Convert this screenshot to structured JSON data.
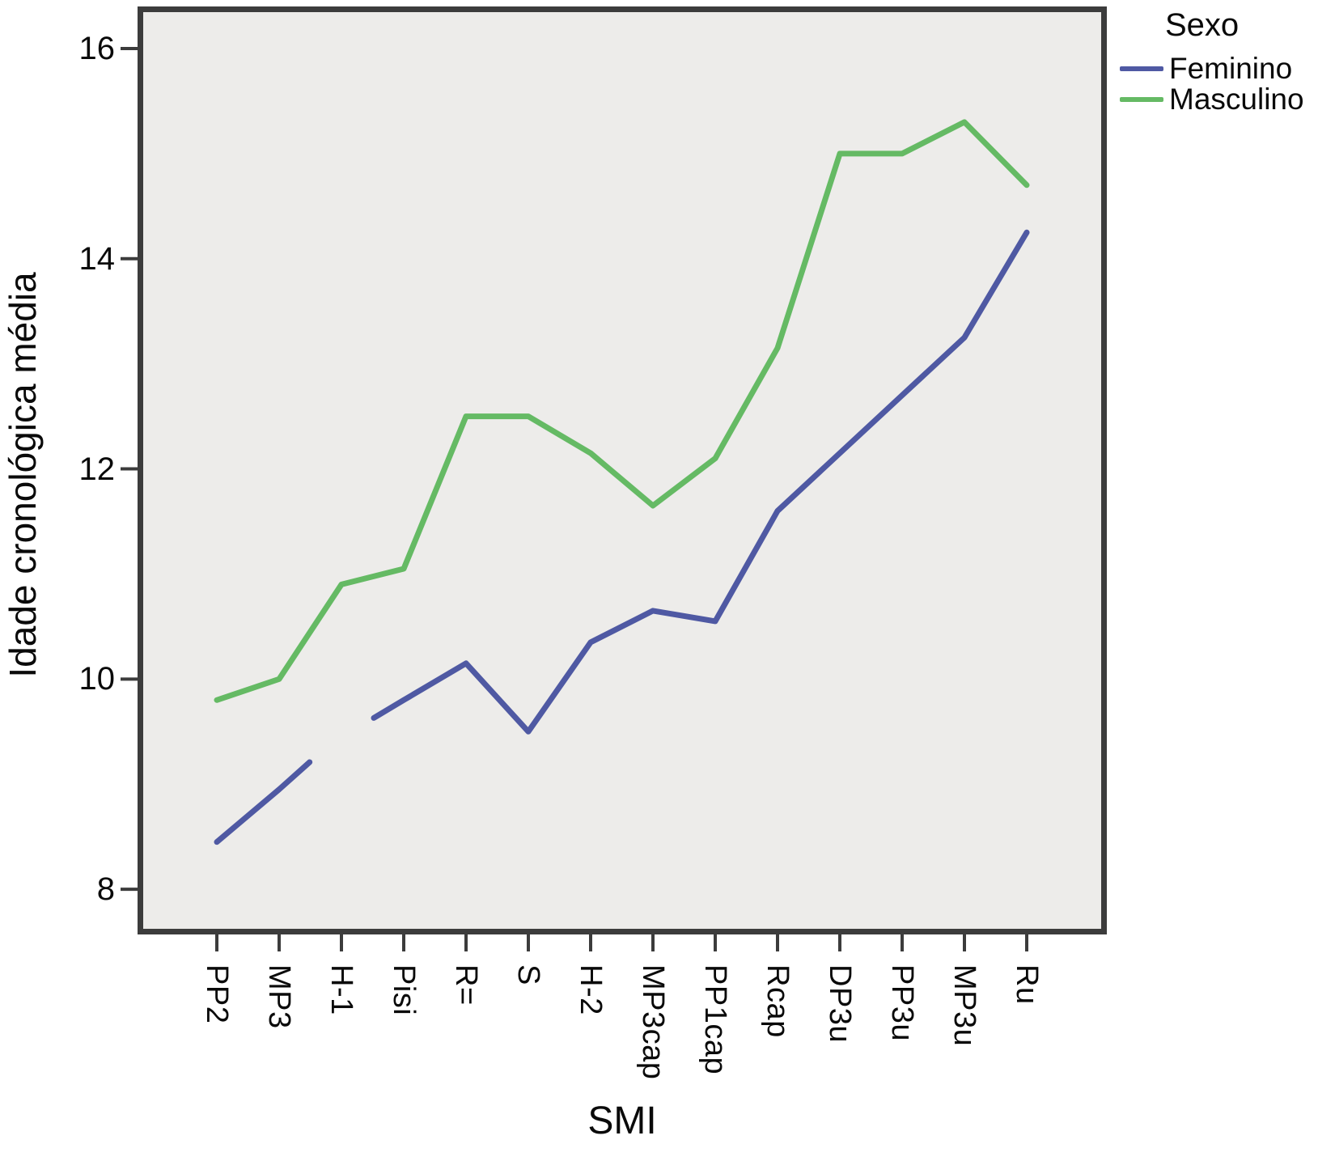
{
  "chart_data": {
    "type": "line",
    "title": "",
    "xlabel": "SMI",
    "ylabel": "Idade cronológica média",
    "categories": [
      "PP2",
      "MP3",
      "H-1",
      "Pisi",
      "R=",
      "S",
      "H-2",
      "MP3cap",
      "PP1cap",
      "Rcap",
      "DP3u",
      "PP3u",
      "MP3u",
      "Ru"
    ],
    "y_ticks": [
      8,
      10,
      12,
      14,
      16
    ],
    "ylim": [
      7.57,
      16.4
    ],
    "grid": false,
    "legend": {
      "title": "Sexo",
      "position": "top-right-outside"
    },
    "plot_bg": "#edecea",
    "border_color": "#3c3c3c",
    "tick_color": "#3c3c3c",
    "series": [
      {
        "name": "Feminino",
        "color": "#4f59a3",
        "values": [
          8.45,
          8.95,
          9.45,
          9.8,
          10.15,
          9.5,
          10.35,
          10.65,
          10.55,
          11.6,
          12.15,
          12.7,
          13.25,
          14.25
        ],
        "render_note": "line drawn with a visible gap around H-1",
        "segments": [
          [
            [
              0,
              8.45
            ],
            [
              1,
              8.95
            ],
            [
              1.49,
              9.21
            ]
          ],
          [
            [
              2.52,
              9.63
            ],
            [
              3,
              9.8
            ],
            [
              4,
              10.15
            ],
            [
              5,
              9.5
            ],
            [
              6,
              10.35
            ],
            [
              7,
              10.65
            ],
            [
              8,
              10.55
            ],
            [
              9,
              11.6
            ],
            [
              10,
              12.15
            ],
            [
              11,
              12.7
            ],
            [
              12,
              13.25
            ],
            [
              13,
              14.25
            ]
          ]
        ]
      },
      {
        "name": "Masculino",
        "color": "#65ba64",
        "values": [
          9.8,
          10.0,
          10.9,
          11.05,
          12.5,
          12.5,
          12.15,
          11.65,
          12.1,
          13.15,
          15.0,
          15.0,
          15.3,
          14.7
        ],
        "segments": [
          [
            [
              0,
              9.8
            ],
            [
              1,
              10.0
            ],
            [
              2,
              10.9
            ],
            [
              3,
              11.05
            ],
            [
              4,
              12.5
            ],
            [
              5,
              12.5
            ],
            [
              6,
              12.15
            ],
            [
              7,
              11.65
            ],
            [
              8,
              12.1
            ],
            [
              9,
              13.15
            ],
            [
              10,
              15.0
            ],
            [
              11,
              15.0
            ],
            [
              12,
              15.3
            ],
            [
              13,
              14.7
            ]
          ]
        ]
      }
    ]
  }
}
